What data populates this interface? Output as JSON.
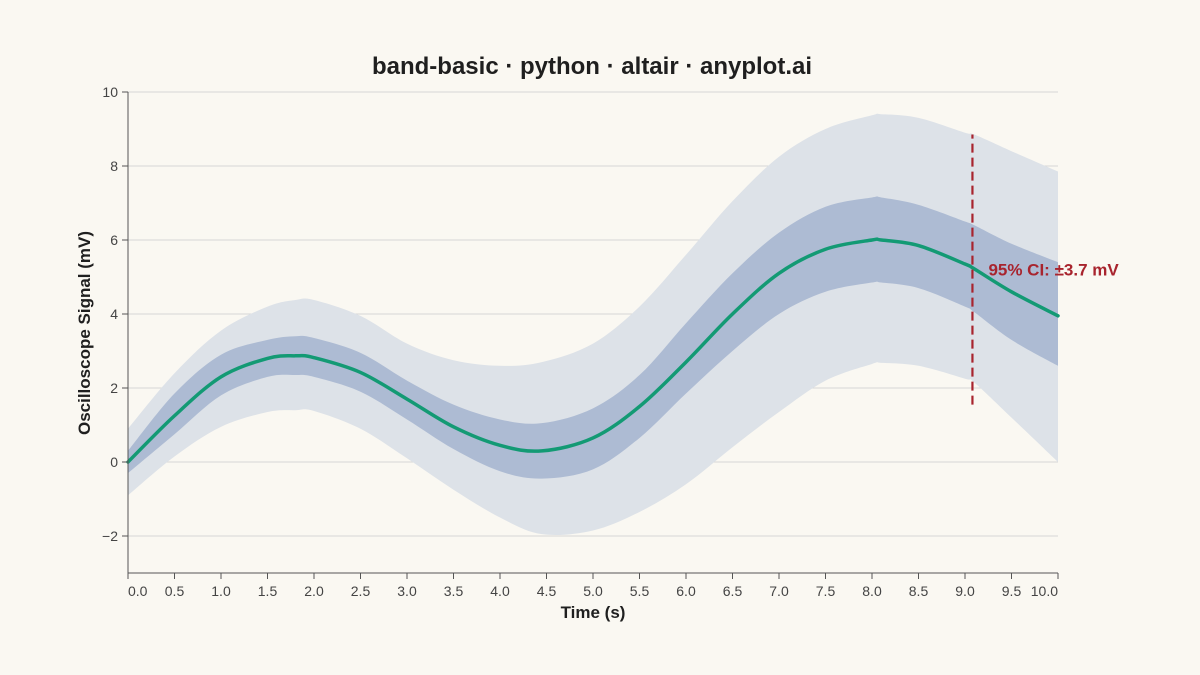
{
  "chart_data": {
    "type": "area",
    "title": "band-basic · python · altair · anyplot.ai",
    "xlabel": "Time (s)",
    "ylabel": "Oscilloscope Signal (mV)",
    "xlim": [
      0,
      10
    ],
    "ylim": [
      -3,
      10
    ],
    "grid": true,
    "x_ticks": [
      "0.0",
      "0.5",
      "1.0",
      "1.5",
      "2.0",
      "2.5",
      "3.0",
      "3.5",
      "4.0",
      "4.5",
      "5.0",
      "5.5",
      "6.0",
      "6.5",
      "7.0",
      "7.5",
      "8.0",
      "8.5",
      "9.0",
      "9.5",
      "10.0"
    ],
    "y_ticks": [
      "−2",
      "0",
      "2",
      "4",
      "6",
      "8",
      "10"
    ],
    "x": [
      0,
      0.5,
      1.0,
      1.5,
      1.8,
      2.0,
      2.5,
      3.0,
      3.5,
      4.0,
      4.45,
      5.0,
      5.5,
      6.0,
      6.5,
      7.0,
      7.5,
      8.0,
      8.1,
      8.5,
      9.0,
      9.1,
      9.5,
      10.0
    ],
    "series": [
      {
        "role": "outer_band_upper",
        "values": [
          0.9,
          2.4,
          3.55,
          4.2,
          4.38,
          4.38,
          3.95,
          3.2,
          2.75,
          2.6,
          2.7,
          3.2,
          4.2,
          5.6,
          7.05,
          8.25,
          9.0,
          9.37,
          9.4,
          9.3,
          8.9,
          8.85,
          8.4,
          7.85
        ]
      },
      {
        "role": "inner_band_upper",
        "values": [
          0.3,
          1.85,
          2.9,
          3.3,
          3.4,
          3.35,
          2.95,
          2.2,
          1.55,
          1.15,
          1.05,
          1.45,
          2.35,
          3.75,
          5.1,
          6.2,
          6.9,
          7.15,
          7.15,
          6.95,
          6.5,
          6.4,
          5.9,
          5.4
        ]
      },
      {
        "role": "mean",
        "values": [
          0.0,
          1.25,
          2.3,
          2.8,
          2.87,
          2.82,
          2.42,
          1.7,
          0.95,
          0.45,
          0.3,
          0.65,
          1.5,
          2.7,
          4.0,
          5.1,
          5.75,
          6.0,
          6.0,
          5.85,
          5.35,
          5.22,
          4.6,
          3.95
        ]
      },
      {
        "role": "inner_band_lower",
        "values": [
          -0.3,
          0.75,
          1.8,
          2.3,
          2.35,
          2.3,
          1.9,
          1.15,
          0.35,
          -0.25,
          -0.45,
          -0.2,
          0.65,
          1.85,
          3.0,
          4.0,
          4.6,
          4.85,
          4.85,
          4.7,
          4.2,
          4.05,
          3.3,
          2.6
        ]
      },
      {
        "role": "outer_band_lower",
        "values": [
          -0.9,
          0.15,
          0.95,
          1.35,
          1.4,
          1.38,
          0.9,
          0.1,
          -0.75,
          -1.5,
          -1.95,
          -1.85,
          -1.35,
          -0.6,
          0.4,
          1.35,
          2.2,
          2.65,
          2.68,
          2.6,
          2.25,
          2.15,
          1.2,
          0.0
        ]
      }
    ],
    "annotation": {
      "text": "95% CI: ±3.7 mV",
      "x": 9.08,
      "y_from": 1.55,
      "y_to": 8.85,
      "label_y": 5.2
    },
    "colors": {
      "outer_band": "#dde2e8",
      "inner_band": "#adbbd3",
      "line": "#139a74",
      "annotation": "#a8242e",
      "grid": "#d6d6d6",
      "axis": "#555555"
    }
  }
}
